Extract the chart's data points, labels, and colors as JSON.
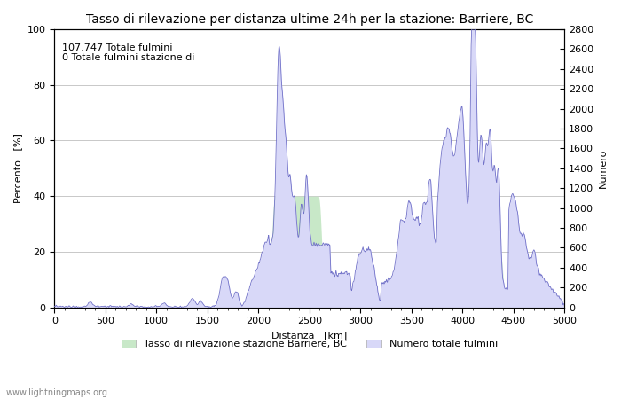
{
  "title": "Tasso di rilevazione per distanza ultime 24h per la stazione: Barriere, BC",
  "xlabel": "Distanza   [km]",
  "ylabel_left": "Percento   [%]",
  "ylabel_right": "Numero",
  "annotation": "107.747 Totale fulmini\n0 Totale fulmini stazione di",
  "watermark": "www.lightningmaps.org",
  "xlim": [
    0,
    5000
  ],
  "ylim_left": [
    0,
    100
  ],
  "ylim_right": [
    0,
    2800
  ],
  "xticks": [
    0,
    500,
    1000,
    1500,
    2000,
    2500,
    3000,
    3500,
    4000,
    4500,
    5000
  ],
  "yticks_left": [
    0,
    20,
    40,
    60,
    80,
    100
  ],
  "yticks_right": [
    0,
    200,
    400,
    600,
    800,
    1000,
    1200,
    1400,
    1600,
    1800,
    2000,
    2200,
    2400,
    2600,
    2800
  ],
  "fill_color_green": "#c8e8c8",
  "fill_color_blue": "#d8d8f8",
  "line_color_blue": "#7070c8",
  "background_color": "#ffffff",
  "grid_color": "#c8c8c8",
  "title_fontsize": 10,
  "axis_fontsize": 8,
  "tick_fontsize": 8,
  "legend_fontsize": 8
}
